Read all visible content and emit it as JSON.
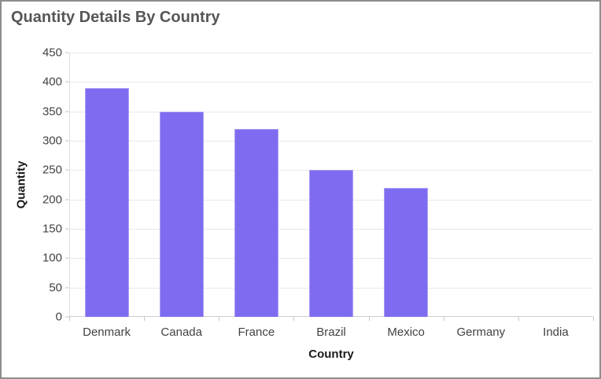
{
  "widget": {
    "title": "Quantity Details By Country"
  },
  "chart_data": {
    "type": "bar",
    "title": "Quantity Details By Country",
    "categories": [
      "Denmark",
      "Canada",
      "France",
      "Brazil",
      "Mexico",
      "Germany",
      "India"
    ],
    "values": [
      390,
      350,
      320,
      250,
      220,
      0,
      0
    ],
    "xlabel": "Country",
    "ylabel": "Quantity",
    "ylim": [
      0,
      450
    ],
    "ytick_step": 50,
    "yticks": [
      0,
      50,
      100,
      150,
      200,
      250,
      300,
      350,
      400,
      450
    ],
    "grid": "horizontal",
    "legend": "none",
    "bar_color": "#7e6cf0"
  },
  "colors": {
    "bar": "#7e6cf0",
    "bar_edge": "#a496f5",
    "title": "#565656",
    "axis_label": "#424242",
    "axis_title": "#1a1a1a",
    "gridline": "#e8e8e8",
    "y_axis_line": "#e0e0e0",
    "x_axis_line": "#cccccc",
    "tick": "#c6c6c6",
    "widget_border": "#8d8d8d",
    "background": "#ffffff"
  }
}
